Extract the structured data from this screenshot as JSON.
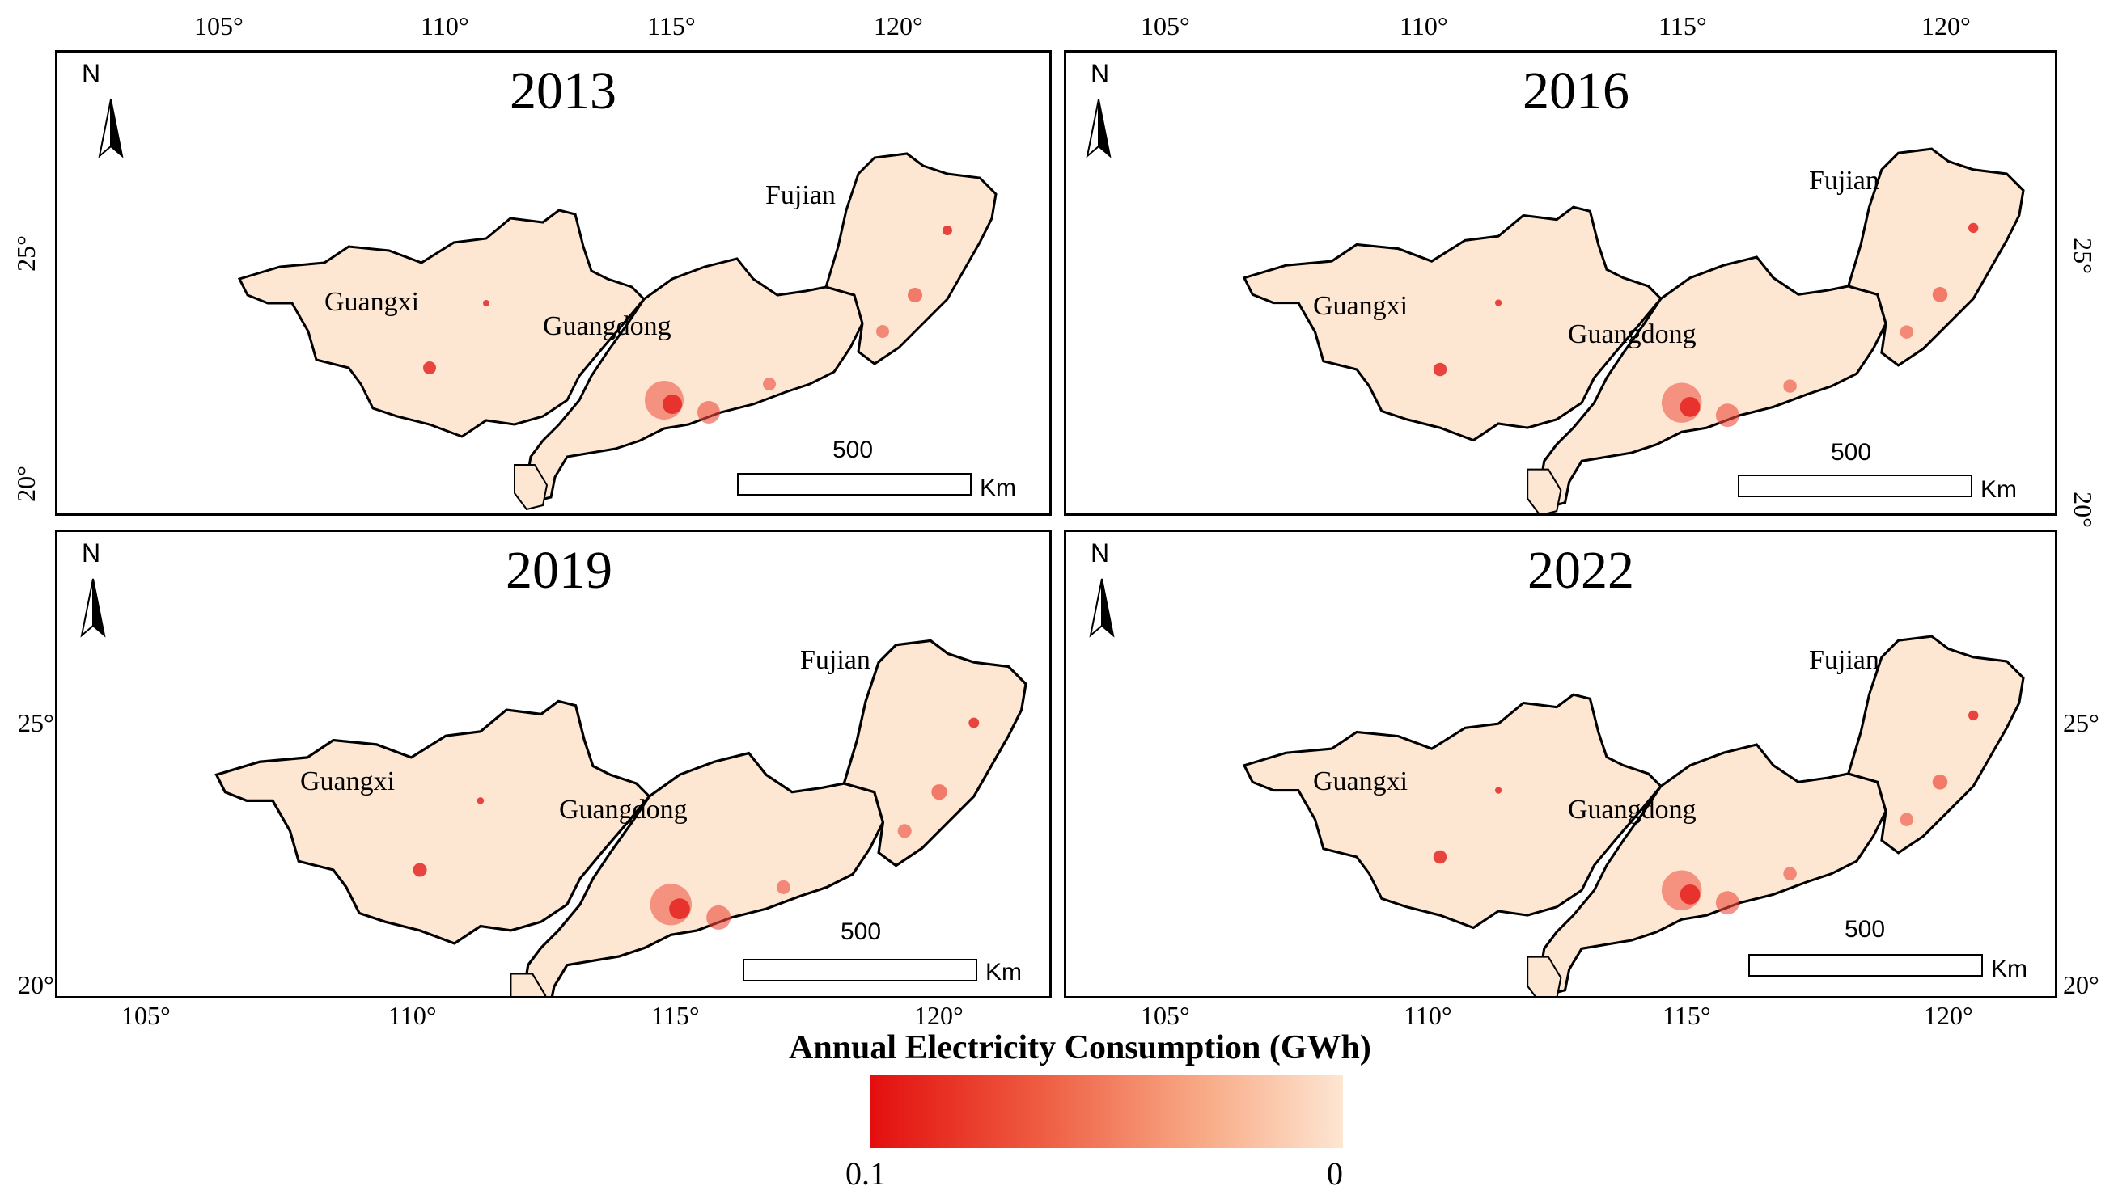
{
  "legend": {
    "title": "Annual Electricity Consumption (GWh)",
    "min_label": "0.1",
    "max_label": "0",
    "color_high": "#e30e0e",
    "color_low": "#fde6d2"
  },
  "top_axis_labels": [
    "105°",
    "110°",
    "115°",
    "120°"
  ],
  "bottom_axis_labels": [
    "105°",
    "110°",
    "115°",
    "120°"
  ],
  "left_axis_labels": [
    "25°",
    "20°"
  ],
  "right_axis_labels": [
    "25°",
    "20°"
  ],
  "panels": [
    {
      "year": "2013",
      "north": "N",
      "regions": [
        "Guangxi",
        "Guangdong",
        "Fujian"
      ],
      "scale": {
        "value": "500",
        "unit": "Km"
      }
    },
    {
      "year": "2016",
      "north": "N",
      "regions": [
        "Guangxi",
        "Guangdong",
        "Fujian"
      ],
      "scale": {
        "value": "500",
        "unit": "Km"
      }
    },
    {
      "year": "2019",
      "north": "N",
      "regions": [
        "Guangxi",
        "Guangdong",
        "Fujian"
      ],
      "scale": {
        "value": "500",
        "unit": "Km"
      }
    },
    {
      "year": "2022",
      "north": "N",
      "regions": [
        "Guangxi",
        "Guangdong",
        "Fujian"
      ],
      "scale": {
        "value": "500",
        "unit": "Km"
      }
    }
  ]
}
